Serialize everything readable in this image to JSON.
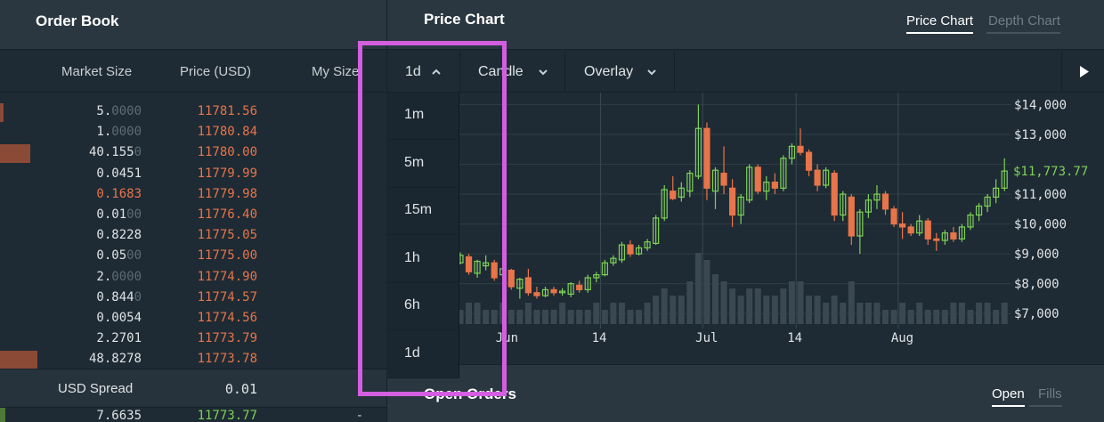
{
  "order_book": {
    "title": "Order Book",
    "columns": {
      "market_size": "Market Size",
      "price": "Price (USD)",
      "my_size": "My Size"
    },
    "asks": [
      {
        "size_main": "5.",
        "size_dim": "0000",
        "price": "11781.56",
        "my": "-"
      },
      {
        "size_main": "1.",
        "size_dim": "0000",
        "price": "11780.84",
        "my": "-"
      },
      {
        "size_main": "40.155",
        "size_dim": "0",
        "price": "11780.00",
        "my": "-"
      },
      {
        "size_main": "0.0451",
        "size_dim": "",
        "price": "11779.99",
        "my": "-"
      },
      {
        "size_main": "0.1683",
        "size_dim": "",
        "price": "11779.98",
        "my": "-"
      },
      {
        "size_main": "0.01",
        "size_dim": "00",
        "price": "11776.40",
        "my": "-"
      },
      {
        "size_main": "0.8228",
        "size_dim": "",
        "price": "11775.05",
        "my": "-"
      },
      {
        "size_main": "0.05",
        "size_dim": "00",
        "price": "11775.00",
        "my": "-"
      },
      {
        "size_main": "2.",
        "size_dim": "0000",
        "price": "11774.90",
        "my": "-"
      },
      {
        "size_main": "0.844",
        "size_dim": "0",
        "price": "11774.57",
        "my": "-"
      },
      {
        "size_main": "0.0054",
        "size_dim": "",
        "price": "11774.56",
        "my": "-"
      },
      {
        "size_main": "2.2701",
        "size_dim": "",
        "price": "11773.79",
        "my": "-"
      },
      {
        "size_main": "48.8278",
        "size_dim": "",
        "price": "11773.78",
        "my": "-"
      }
    ],
    "spread_label": "USD Spread",
    "spread_value": "0.01",
    "bid": {
      "size": "7.6635",
      "price": "11773.77",
      "my": "-"
    }
  },
  "price_chart": {
    "title": "Price Chart",
    "tabs": [
      "Price Chart",
      "Depth Chart"
    ],
    "toolbar": {
      "interval": "1d",
      "style": "Candle",
      "overlay": "Overlay"
    },
    "current_price_label": "$11,773.77"
  },
  "interval_dropdown": {
    "options": [
      "1m",
      "5m",
      "15m",
      "1h",
      "6h",
      "1d"
    ]
  },
  "open_orders": {
    "title": "Open Orders",
    "tabs": [
      "Open",
      "Fills"
    ]
  },
  "colors": {
    "bg": "#1e2b34",
    "header_bg": "#2a3740",
    "ask_red": "#e8744a",
    "bid_green": "#7ed157",
    "highlight": "#d45ee0"
  },
  "chart_data": {
    "type": "candlestick",
    "y_tick_labels": [
      "$14,000",
      "$13,000",
      "$11,000",
      "$10,000",
      "$9,000",
      "$8,000",
      "$7,000"
    ],
    "x_tick_labels": [
      "Jun",
      "14",
      "Jul",
      "14",
      "Aug"
    ],
    "ylim": [
      6500,
      14400
    ],
    "x_ticks": [
      5,
      16.5,
      28.5,
      39.5,
      51.5
    ],
    "vgrid_x": [
      16.5,
      28.5,
      39.5,
      51.5
    ],
    "price_marker": 11773.77,
    "candles": [
      {
        "o": 8700,
        "h": 9050,
        "l": 8650,
        "c": 8950
      },
      {
        "o": 8900,
        "h": 9000,
        "l": 8300,
        "c": 8400
      },
      {
        "o": 8350,
        "h": 8800,
        "l": 8200,
        "c": 8750
      },
      {
        "o": 8600,
        "h": 8950,
        "l": 8450,
        "c": 8700
      },
      {
        "o": 8700,
        "h": 8800,
        "l": 8100,
        "c": 8200
      },
      {
        "o": 8300,
        "h": 8650,
        "l": 8200,
        "c": 8500
      },
      {
        "o": 8450,
        "h": 8500,
        "l": 7800,
        "c": 7900
      },
      {
        "o": 7850,
        "h": 8200,
        "l": 7500,
        "c": 8150
      },
      {
        "o": 8200,
        "h": 8500,
        "l": 7600,
        "c": 7700
      },
      {
        "o": 7700,
        "h": 7900,
        "l": 7500,
        "c": 7600
      },
      {
        "o": 7600,
        "h": 7900,
        "l": 7550,
        "c": 7800
      },
      {
        "o": 7800,
        "h": 7900,
        "l": 7600,
        "c": 7700
      },
      {
        "o": 7700,
        "h": 7850,
        "l": 7600,
        "c": 7750
      },
      {
        "o": 7650,
        "h": 8050,
        "l": 7550,
        "c": 8000
      },
      {
        "o": 7950,
        "h": 8100,
        "l": 7700,
        "c": 7800
      },
      {
        "o": 7800,
        "h": 8300,
        "l": 7700,
        "c": 8200
      },
      {
        "o": 8200,
        "h": 8400,
        "l": 8050,
        "c": 8300
      },
      {
        "o": 8300,
        "h": 8800,
        "l": 8250,
        "c": 8700
      },
      {
        "o": 8700,
        "h": 8950,
        "l": 8600,
        "c": 8850
      },
      {
        "o": 8800,
        "h": 9400,
        "l": 8700,
        "c": 9300
      },
      {
        "o": 9300,
        "h": 9450,
        "l": 8900,
        "c": 9000
      },
      {
        "o": 9000,
        "h": 9300,
        "l": 8950,
        "c": 9200
      },
      {
        "o": 9200,
        "h": 9500,
        "l": 9100,
        "c": 9400
      },
      {
        "o": 9350,
        "h": 10300,
        "l": 9300,
        "c": 10200
      },
      {
        "o": 10200,
        "h": 11300,
        "l": 10100,
        "c": 11150
      },
      {
        "o": 11100,
        "h": 11600,
        "l": 10800,
        "c": 10850
      },
      {
        "o": 10900,
        "h": 11400,
        "l": 10750,
        "c": 11200
      },
      {
        "o": 11100,
        "h": 11800,
        "l": 10900,
        "c": 11700
      },
      {
        "o": 11600,
        "h": 14000,
        "l": 11500,
        "c": 13200
      },
      {
        "o": 13200,
        "h": 13400,
        "l": 10800,
        "c": 11200
      },
      {
        "o": 11100,
        "h": 11900,
        "l": 10500,
        "c": 11800
      },
      {
        "o": 11700,
        "h": 12600,
        "l": 11000,
        "c": 11300
      },
      {
        "o": 11200,
        "h": 11500,
        "l": 9900,
        "c": 10300
      },
      {
        "o": 10300,
        "h": 11000,
        "l": 10000,
        "c": 10900
      },
      {
        "o": 10800,
        "h": 12000,
        "l": 10700,
        "c": 11900
      },
      {
        "o": 11900,
        "h": 12000,
        "l": 11000,
        "c": 11100
      },
      {
        "o": 11100,
        "h": 11600,
        "l": 10800,
        "c": 11400
      },
      {
        "o": 11400,
        "h": 11700,
        "l": 11000,
        "c": 11200
      },
      {
        "o": 11200,
        "h": 12300,
        "l": 11100,
        "c": 12200
      },
      {
        "o": 12200,
        "h": 12700,
        "l": 12000,
        "c": 12600
      },
      {
        "o": 12600,
        "h": 13200,
        "l": 12300,
        "c": 12400
      },
      {
        "o": 12400,
        "h": 12500,
        "l": 11600,
        "c": 11800
      },
      {
        "o": 11800,
        "h": 12000,
        "l": 11100,
        "c": 11300
      },
      {
        "o": 11300,
        "h": 11900,
        "l": 11200,
        "c": 11800
      },
      {
        "o": 11700,
        "h": 11800,
        "l": 10100,
        "c": 10300
      },
      {
        "o": 10300,
        "h": 11100,
        "l": 10100,
        "c": 11000
      },
      {
        "o": 10900,
        "h": 11000,
        "l": 9300,
        "c": 9600
      },
      {
        "o": 9600,
        "h": 10500,
        "l": 9000,
        "c": 10400
      },
      {
        "o": 10400,
        "h": 11000,
        "l": 10200,
        "c": 10800
      },
      {
        "o": 10800,
        "h": 11300,
        "l": 10500,
        "c": 11000
      },
      {
        "o": 11000,
        "h": 11100,
        "l": 10300,
        "c": 10500
      },
      {
        "o": 10500,
        "h": 10600,
        "l": 9900,
        "c": 10000
      },
      {
        "o": 10000,
        "h": 10400,
        "l": 9500,
        "c": 9900
      },
      {
        "o": 9900,
        "h": 10000,
        "l": 9600,
        "c": 9700
      },
      {
        "o": 9700,
        "h": 10300,
        "l": 9600,
        "c": 10100
      },
      {
        "o": 10100,
        "h": 10200,
        "l": 9300,
        "c": 9500
      },
      {
        "o": 9500,
        "h": 9700,
        "l": 9100,
        "c": 9450
      },
      {
        "o": 9450,
        "h": 9800,
        "l": 9300,
        "c": 9700
      },
      {
        "o": 9700,
        "h": 9900,
        "l": 9400,
        "c": 9500
      },
      {
        "o": 9500,
        "h": 10000,
        "l": 9400,
        "c": 9900
      },
      {
        "o": 9900,
        "h": 10400,
        "l": 9800,
        "c": 10300
      },
      {
        "o": 10300,
        "h": 10700,
        "l": 10100,
        "c": 10600
      },
      {
        "o": 10600,
        "h": 11000,
        "l": 10400,
        "c": 10900
      },
      {
        "o": 10900,
        "h": 11500,
        "l": 10700,
        "c": 11200
      },
      {
        "o": 11200,
        "h": 12200,
        "l": 11100,
        "c": 11774
      }
    ],
    "volume_hint": [
      2,
      3,
      3,
      2,
      2,
      3,
      2,
      2,
      3,
      2,
      2,
      2,
      3,
      2,
      2,
      2,
      3,
      2,
      3,
      3,
      2,
      2,
      3,
      4,
      5,
      4,
      4,
      6,
      10,
      9,
      7,
      6,
      5,
      4,
      5,
      5,
      4,
      4,
      5,
      6,
      6,
      4,
      4,
      3,
      4,
      3,
      6,
      3,
      3,
      3,
      2,
      2,
      3,
      2,
      3,
      2,
      2,
      2,
      3,
      3,
      2,
      3,
      3,
      2,
      3
    ]
  }
}
